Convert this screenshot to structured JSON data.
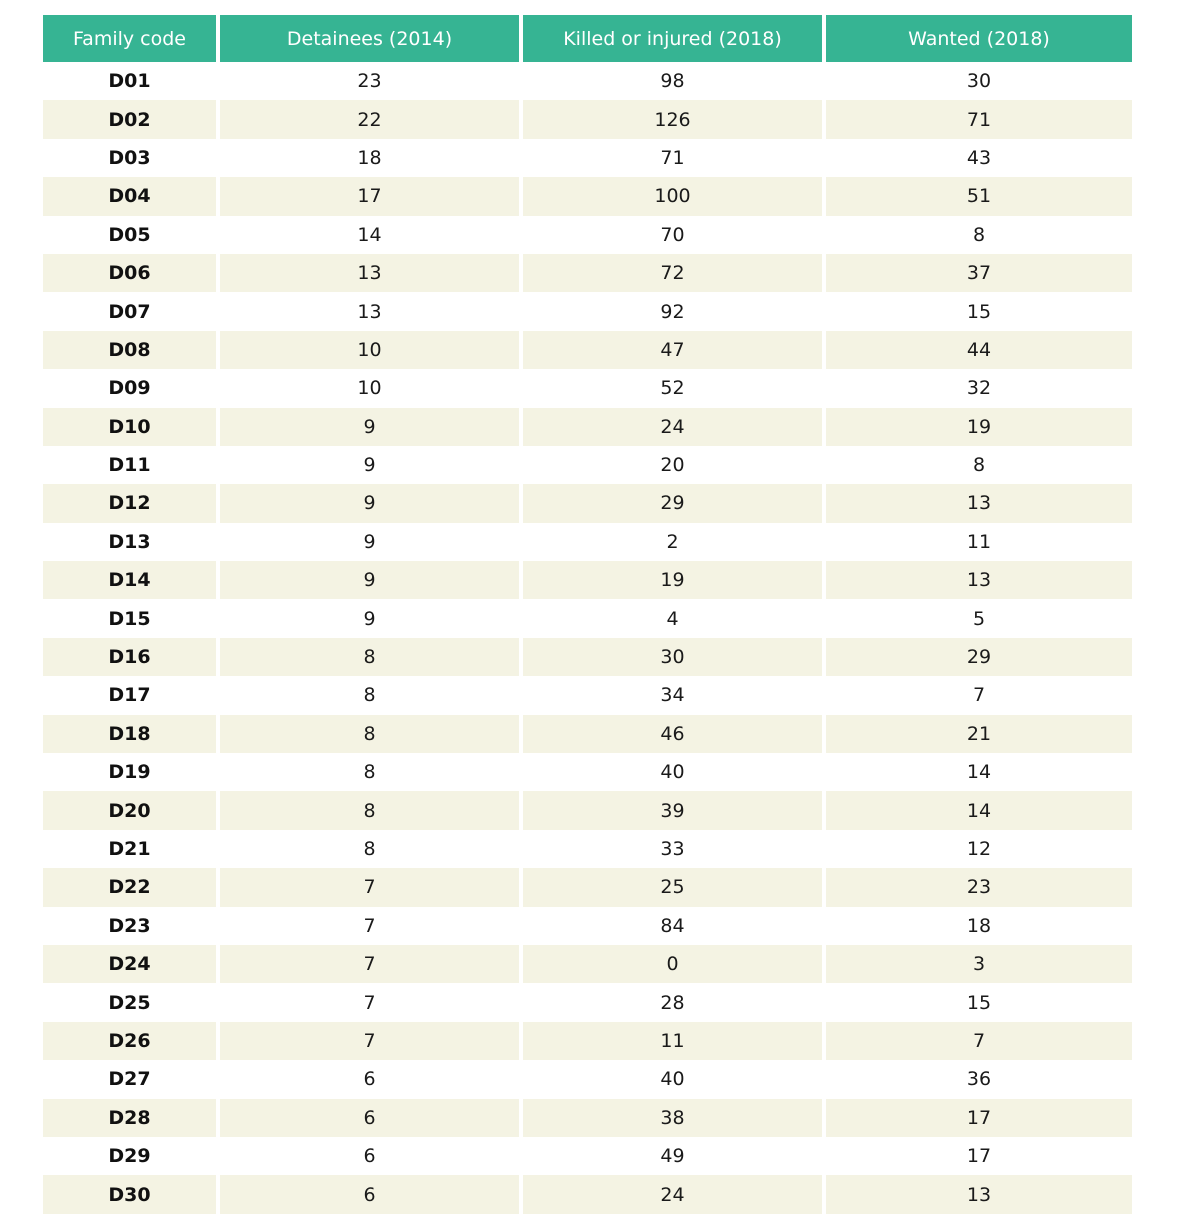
{
  "table": {
    "headers": [
      "Family code",
      "Detainees (2014)",
      "Killed or injured (2018)",
      "Wanted (2018)"
    ],
    "rows": [
      [
        "D01",
        "23",
        "98",
        "30"
      ],
      [
        "D02",
        "22",
        "126",
        "71"
      ],
      [
        "D03",
        "18",
        "71",
        "43"
      ],
      [
        "D04",
        "17",
        "100",
        "51"
      ],
      [
        "D05",
        "14",
        "70",
        "8"
      ],
      [
        "D06",
        "13",
        "72",
        "37"
      ],
      [
        "D07",
        "13",
        "92",
        "15"
      ],
      [
        "D08",
        "10",
        "47",
        "44"
      ],
      [
        "D09",
        "10",
        "52",
        "32"
      ],
      [
        "D10",
        "9",
        "24",
        "19"
      ],
      [
        "D11",
        "9",
        "20",
        "8"
      ],
      [
        "D12",
        "9",
        "29",
        "13"
      ],
      [
        "D13",
        "9",
        "2",
        "11"
      ],
      [
        "D14",
        "9",
        "19",
        "13"
      ],
      [
        "D15",
        "9",
        "4",
        "5"
      ],
      [
        "D16",
        "8",
        "30",
        "29"
      ],
      [
        "D17",
        "8",
        "34",
        "7"
      ],
      [
        "D18",
        "8",
        "46",
        "21"
      ],
      [
        "D19",
        "8",
        "40",
        "14"
      ],
      [
        "D20",
        "8",
        "39",
        "14"
      ],
      [
        "D21",
        "8",
        "33",
        "12"
      ],
      [
        "D22",
        "7",
        "25",
        "23"
      ],
      [
        "D23",
        "7",
        "84",
        "18"
      ],
      [
        "D24",
        "7",
        "0",
        "3"
      ],
      [
        "D25",
        "7",
        "28",
        "15"
      ],
      [
        "D26",
        "7",
        "11",
        "7"
      ],
      [
        "D27",
        "6",
        "40",
        "36"
      ],
      [
        "D28",
        "6",
        "38",
        "17"
      ],
      [
        "D29",
        "6",
        "49",
        "17"
      ],
      [
        "D30",
        "6",
        "24",
        "13"
      ]
    ]
  },
  "colors": {
    "header_bg": "#36b493",
    "header_text": "#ffffff",
    "stripe_bg": "#f4f3e3"
  }
}
